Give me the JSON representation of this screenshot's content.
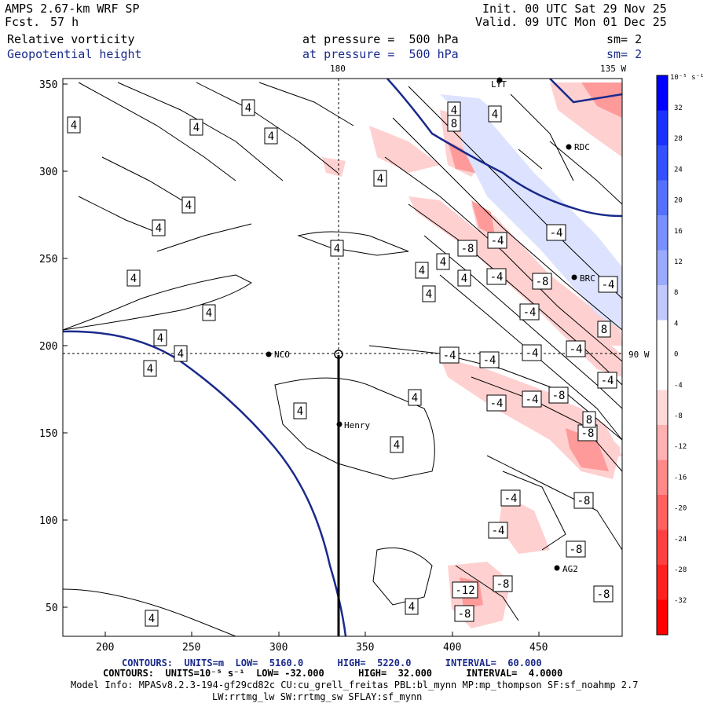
{
  "header": {
    "model": "AMPS 2.67-km WRF SP",
    "fcst_label": "Fcst.",
    "fcst_value": "57 h",
    "init": "Init. 00 UTC Sat 29 Nov 25",
    "valid": "Valid. 09 UTC Mon 01 Dec 25",
    "field1": "Relative vorticity",
    "field2": "Geopotential height",
    "pressure1": "at pressure =  500 hPa",
    "pressure2": "at pressure =  500 hPa",
    "sm1": "sm= 2",
    "sm2": "sm= 2"
  },
  "map": {
    "lon_top_180": "180",
    "lon_top_135w": "135 W",
    "lon_right_90w": "90 W",
    "y_ticks": [
      "350",
      "300",
      "250",
      "200",
      "150",
      "100",
      "50"
    ],
    "x_ticks": [
      "200",
      "250",
      "300",
      "350",
      "400",
      "450"
    ],
    "stations": [
      "NCO",
      "Henry",
      "RDC",
      "BRC",
      "LYT",
      "AG2"
    ],
    "contour_labels": [
      "4",
      "4",
      "4",
      "4",
      "4",
      "4",
      "4",
      "4",
      "4",
      "4",
      "4",
      "4",
      "4",
      "4",
      "4",
      "4",
      "4",
      "4",
      "4",
      "4",
      "4",
      "4",
      "4",
      "4",
      "-4",
      "-4",
      "-4",
      "-4",
      "-4",
      "-4",
      "-4",
      "-4",
      "-4",
      "-4",
      "-4",
      "-4",
      "-4",
      "-4",
      "-8",
      "-8",
      "-8",
      "-8",
      "-8",
      "-8",
      "-8",
      "-8",
      "-8",
      "-12",
      "8",
      "8",
      "8"
    ]
  },
  "colorbar": {
    "unit": "10⁻⁵ s⁻¹",
    "labels": [
      "32",
      "28",
      "24",
      "20",
      "16",
      "12",
      "8",
      "4",
      "0",
      "-4",
      "-8",
      "-12",
      "-16",
      "-20",
      "-24",
      "-28",
      "-32"
    ],
    "colors": [
      "#0000ff",
      "#1a30ff",
      "#3550ff",
      "#5570ff",
      "#7890ff",
      "#9aaaff",
      "#c0c8ff",
      "#ffffff",
      "#ffffff",
      "#ffd8d8",
      "#ffb0b0",
      "#ff8888",
      "#ff6060",
      "#ff4040",
      "#ff2020",
      "#ff0000"
    ]
  },
  "footer": {
    "line1": "CONTOURS:  UNITS=m  LOW=  5160.0      HIGH=  5220.0      INTERVAL=  60.000",
    "line2": "CONTOURS:  UNITS=10⁻⁵ s⁻¹  LOW= -32.000      HIGH=  32.000      INTERVAL=  4.0000",
    "line3": "Model Info: MPASv8.2.3-194-gf29cd82c CU:cu_grell_freitas PBL:bl_mynn MP:mp_thompson SF:sf_noahmp 2.7",
    "line4": "LW:rrtmg_lw SW:rrtmg_sw SFLAY:sf_mynn"
  },
  "colors": {
    "height_contour": "#1a2a8c",
    "positive": "#ccd6ff",
    "negative": "#ffcccc"
  }
}
